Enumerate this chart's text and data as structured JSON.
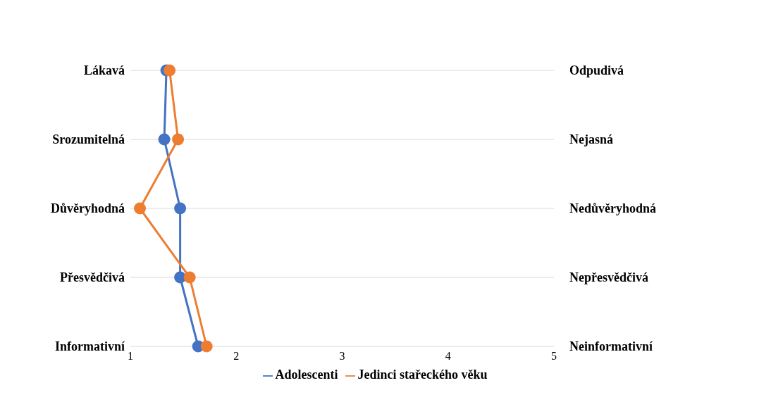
{
  "chart_data": {
    "type": "line",
    "orientation": "horizontal",
    "categories": [
      "Lákavá",
      "Srozumitelná",
      "Důvěryhodná",
      "Přesvědčivá",
      "Informativní"
    ],
    "annotations": [
      "Odpudivá",
      "Nejasná",
      "Nedůvěryhodná",
      "Nepřesvědčivá",
      "Neinformativní"
    ],
    "series": [
      {
        "name": "Adolescenti",
        "color": "#4472c4",
        "values": [
          1.34,
          1.32,
          1.47,
          1.47,
          1.64
        ]
      },
      {
        "name": "Jedinci stařeckého věku",
        "color": "#ed7d31",
        "values": [
          1.37,
          1.45,
          1.09,
          1.56,
          1.72
        ]
      }
    ],
    "xlim": [
      1,
      5
    ],
    "xticks": [
      1,
      2,
      3,
      4,
      5
    ],
    "grid": "y",
    "legend": "bottom",
    "marker": "circle",
    "line_style": "solid"
  }
}
